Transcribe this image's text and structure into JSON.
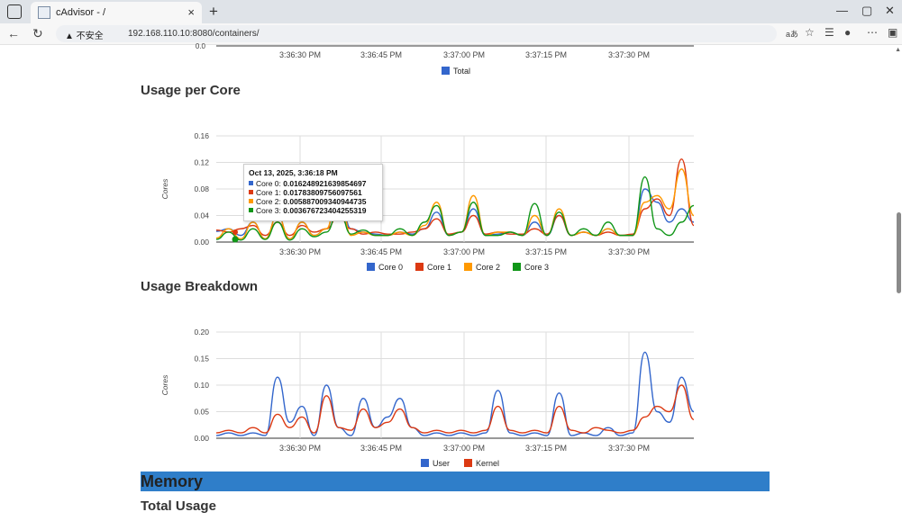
{
  "browser": {
    "tab_title": "cAdvisor - /",
    "tab_close": "×",
    "new_tab": "+",
    "security_label": "▲ 不安全",
    "url": "192.168.110.10:8080/containers/",
    "read_aloud": "aあ"
  },
  "page": {
    "usage_per_core_title": "Usage per Core",
    "usage_breakdown_title": "Usage Breakdown",
    "memory_title": "Memory",
    "total_usage_title": "Total Usage"
  },
  "colors": {
    "core0": "#3366cc",
    "core1": "#dc3912",
    "core2": "#ff9900",
    "core3": "#109618",
    "memory_bar": "#2f7ec9"
  },
  "tooltip": {
    "title": "Oct 13, 2025, 3:36:18 PM",
    "rows": [
      {
        "label": "Core 0:",
        "value": "0.016248921639854697"
      },
      {
        "label": "Core 1:",
        "value": "0.01783809756097561"
      },
      {
        "label": "Core 2:",
        "value": "0.005887009340944735"
      },
      {
        "label": "Core 3:",
        "value": "0.003676723404255319"
      }
    ]
  },
  "chart_data": [
    {
      "type": "line",
      "x_ticks": [
        "3:36:30 PM",
        "3:36:45 PM",
        "3:37:00 PM",
        "3:37:15 PM",
        "3:37:30 PM"
      ],
      "y_tick_top": "0.0",
      "series": [
        {
          "name": "Total",
          "values": []
        }
      ]
    },
    {
      "type": "line",
      "title": "Usage per Core",
      "ylabel": "Cores",
      "ylim": [
        0,
        0.16
      ],
      "y_ticks": [
        "0.00",
        "0.04",
        "0.08",
        "0.12",
        "0.16"
      ],
      "x_ticks": [
        "3:36:30 PM",
        "3:36:45 PM",
        "3:37:00 PM",
        "3:37:15 PM",
        "3:37:30 PM"
      ],
      "series": [
        {
          "name": "Core 0",
          "values": [
            0.016,
            0.02,
            0.01,
            0.03,
            0.005,
            0.04,
            0.005,
            0.03,
            0.01,
            0.02,
            0.078,
            0.02,
            0.015,
            0.012,
            0.01,
            0.015,
            0.012,
            0.02,
            0.045,
            0.01,
            0.015,
            0.05,
            0.01,
            0.012,
            0.015,
            0.01,
            0.03,
            0.01,
            0.04,
            0.01,
            0.015,
            0.01,
            0.02,
            0.01,
            0.01,
            0.08,
            0.06,
            0.03,
            0.05,
            0.03
          ]
        },
        {
          "name": "Core 1",
          "values": [
            0.018,
            0.015,
            0.02,
            0.025,
            0.01,
            0.03,
            0.01,
            0.025,
            0.015,
            0.02,
            0.04,
            0.02,
            0.012,
            0.015,
            0.012,
            0.012,
            0.015,
            0.02,
            0.035,
            0.012,
            0.015,
            0.04,
            0.012,
            0.015,
            0.012,
            0.012,
            0.02,
            0.012,
            0.04,
            0.01,
            0.015,
            0.01,
            0.015,
            0.01,
            0.012,
            0.05,
            0.065,
            0.04,
            0.125,
            0.025
          ]
        },
        {
          "name": "Core 2",
          "values": [
            0.006,
            0.02,
            0.005,
            0.03,
            0.005,
            0.04,
            0.005,
            0.03,
            0.01,
            0.02,
            0.09,
            0.01,
            0.015,
            0.01,
            0.01,
            0.015,
            0.01,
            0.025,
            0.06,
            0.01,
            0.015,
            0.07,
            0.01,
            0.015,
            0.015,
            0.01,
            0.04,
            0.01,
            0.05,
            0.01,
            0.015,
            0.01,
            0.02,
            0.01,
            0.01,
            0.06,
            0.07,
            0.05,
            0.11,
            0.04
          ]
        },
        {
          "name": "Core 3",
          "values": [
            0.004,
            0.015,
            0.003,
            0.02,
            0.004,
            0.03,
            0.003,
            0.02,
            0.008,
            0.015,
            0.05,
            0.012,
            0.018,
            0.01,
            0.01,
            0.02,
            0.01,
            0.03,
            0.055,
            0.01,
            0.015,
            0.06,
            0.01,
            0.01,
            0.015,
            0.01,
            0.058,
            0.01,
            0.045,
            0.01,
            0.02,
            0.01,
            0.03,
            0.01,
            0.01,
            0.098,
            0.02,
            0.01,
            0.03,
            0.055
          ]
        }
      ]
    },
    {
      "type": "line",
      "title": "Usage Breakdown",
      "ylabel": "Cores",
      "ylim": [
        0,
        0.2
      ],
      "y_ticks": [
        "0.00",
        "0.05",
        "0.10",
        "0.15",
        "0.20"
      ],
      "x_ticks": [
        "3:36:30 PM",
        "3:36:45 PM",
        "3:37:00 PM",
        "3:37:15 PM",
        "3:37:30 PM"
      ],
      "series": [
        {
          "name": "User",
          "values": [
            0.005,
            0.01,
            0.005,
            0.01,
            0.005,
            0.115,
            0.03,
            0.06,
            0.005,
            0.1,
            0.02,
            0.005,
            0.075,
            0.02,
            0.04,
            0.075,
            0.02,
            0.005,
            0.01,
            0.005,
            0.01,
            0.005,
            0.01,
            0.09,
            0.01,
            0.005,
            0.01,
            0.005,
            0.085,
            0.005,
            0.01,
            0.005,
            0.02,
            0.005,
            0.01,
            0.162,
            0.05,
            0.03,
            0.115,
            0.05
          ]
        },
        {
          "name": "Kernel",
          "values": [
            0.01,
            0.015,
            0.01,
            0.02,
            0.01,
            0.045,
            0.02,
            0.04,
            0.01,
            0.08,
            0.02,
            0.015,
            0.055,
            0.02,
            0.03,
            0.055,
            0.02,
            0.01,
            0.015,
            0.01,
            0.015,
            0.01,
            0.015,
            0.06,
            0.015,
            0.01,
            0.015,
            0.01,
            0.06,
            0.015,
            0.01,
            0.02,
            0.015,
            0.01,
            0.015,
            0.04,
            0.06,
            0.05,
            0.1,
            0.035
          ]
        }
      ]
    }
  ]
}
